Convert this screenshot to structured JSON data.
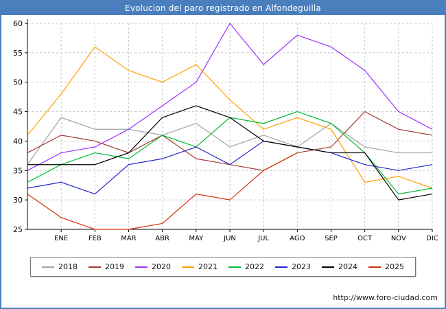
{
  "header": {
    "title": "Evolucion del paro registrado en Alfondeguilla"
  },
  "colors": {
    "frame": "#4a7ebc",
    "header_bg": "#4a7ebc",
    "header_text": "#ffffff",
    "grid": "#c8c8c8",
    "axis": "#000000"
  },
  "footer": {
    "url": "http://www.foro-ciudad.com"
  },
  "chart_data": {
    "type": "line",
    "title": "Evolucion del paro registrado en Alfondeguilla",
    "x_labels": [
      "",
      "ENE",
      "FEB",
      "MAR",
      "ABR",
      "MAY",
      "JUN",
      "JUL",
      "AGO",
      "SEP",
      "OCT",
      "NOV",
      "DIC"
    ],
    "xlabel": "",
    "ylabel": "",
    "ylim": [
      25,
      60
    ],
    "y_ticks": [
      25,
      30,
      35,
      40,
      45,
      50,
      55,
      60
    ],
    "grid": true,
    "legend_position": "bottom",
    "series": [
      {
        "name": "2018",
        "color": "#a3a3a3",
        "values": [
          36,
          44,
          42,
          42,
          41,
          43,
          39,
          41,
          39,
          43,
          39,
          38,
          38
        ]
      },
      {
        "name": "2019",
        "color": "#a03a30",
        "values": [
          38,
          41,
          40,
          38,
          41,
          37,
          36,
          35,
          38,
          39,
          45,
          42,
          41
        ]
      },
      {
        "name": "2020",
        "color": "#9b30ff",
        "values": [
          35,
          38,
          39,
          42,
          46,
          50,
          60,
          53,
          58,
          56,
          52,
          45,
          42
        ]
      },
      {
        "name": "2021",
        "color": "#ffa000",
        "values": [
          41,
          48,
          56,
          52,
          50,
          53,
          47,
          42,
          44,
          42,
          33,
          34,
          32
        ]
      },
      {
        "name": "2022",
        "color": "#00bb33",
        "values": [
          33,
          36,
          38,
          37,
          41,
          39,
          44,
          43,
          45,
          43,
          38,
          31,
          32
        ]
      },
      {
        "name": "2023",
        "color": "#2222cc",
        "values": [
          32,
          33,
          31,
          36,
          37,
          39,
          36,
          40,
          39,
          38,
          36,
          35,
          36
        ]
      },
      {
        "name": "2024",
        "color": "#000000",
        "values": [
          36,
          36,
          36,
          38,
          44,
          46,
          44,
          40,
          39,
          38,
          38,
          30,
          31
        ]
      },
      {
        "name": "2025",
        "color": "#d42c10",
        "values": [
          31,
          27,
          25,
          25,
          26,
          31,
          30,
          35,
          38,
          null,
          null,
          null,
          null
        ]
      }
    ]
  }
}
